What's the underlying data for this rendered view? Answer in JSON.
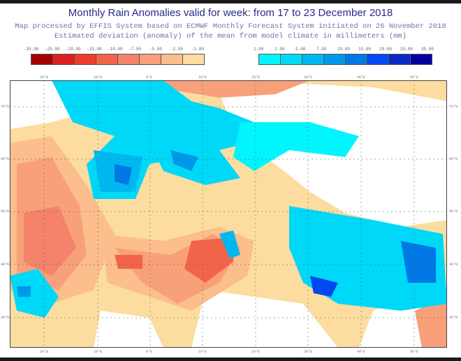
{
  "title": "Monthly Rain Anomalies valid for week: from 17 to 23 December 2018",
  "subtitle1": "Map processed by EFFIS System based on ECMWF Monthly Forecast System initiated on 26 November 2018",
  "subtitle2": "Estimated deviation (anomaly) of the mean from model climate in millimeters (mm)",
  "legend_negative": {
    "labels": [
      "-35.00",
      "-25.00",
      "-20.00",
      "-15.00",
      "-10.00",
      "-7.50",
      "-5.00",
      "-2.50",
      "-1.00"
    ],
    "colors": [
      "#a80000",
      "#dc2020",
      "#f03c28",
      "#f2644a",
      "#f5826a",
      "#f8a07a",
      "#fbbe8c",
      "#fddca0"
    ]
  },
  "legend_positive": {
    "labels": [
      "1.00",
      "2.50",
      "5.00",
      "7.50",
      "10.00",
      "15.00",
      "20.00",
      "25.00",
      "35.00"
    ],
    "colors": [
      "#00f5ff",
      "#00d8f8",
      "#00b8f0",
      "#0098ea",
      "#0078e6",
      "#0048f0",
      "#0a28c8",
      "#0000a0"
    ]
  },
  "lon_labels": [
    "20°W",
    "10°W",
    "0°E",
    "10°E",
    "20°E",
    "30°E",
    "40°E",
    "50°E"
  ],
  "lat_labels": [
    "70°N",
    "60°N",
    "50°N",
    "40°N",
    "30°N"
  ]
}
